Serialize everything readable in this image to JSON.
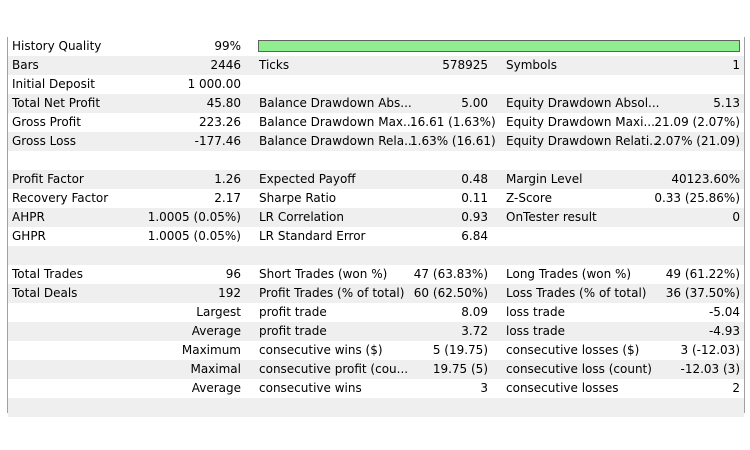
{
  "colors": {
    "quality_bar": "#90ee90",
    "row_alt": "#efefef"
  },
  "history": {
    "label": "History Quality",
    "value": "99%",
    "fill": 0.99
  },
  "rows": [
    {
      "label": "Bars",
      "value": "2446",
      "l2": "Ticks",
      "v2": "578925",
      "l3": "Symbols",
      "v3": "1"
    },
    {
      "label": "Initial Deposit",
      "value": "1 000.00",
      "l2": "",
      "v2": "",
      "l3": "",
      "v3": ""
    },
    {
      "label": "Total Net Profit",
      "value": "45.80",
      "l2": "Balance Drawdown Abs...",
      "v2": "5.00",
      "l3": "Equity Drawdown Absol...",
      "v3": "5.13"
    },
    {
      "label": "Gross Profit",
      "value": "223.26",
      "l2": "Balance Drawdown Max...",
      "v2": "16.61 (1.63%)",
      "l3": "Equity Drawdown Maxi...",
      "v3": "21.09 (2.07%)"
    },
    {
      "label": "Gross Loss",
      "value": "-177.46",
      "l2": "Balance Drawdown Rela...",
      "v2": "1.63% (16.61)",
      "l3": "Equity Drawdown Relati...",
      "v3": "2.07% (21.09)"
    },
    {
      "label": "",
      "value": "",
      "l2": "",
      "v2": "",
      "l3": "",
      "v3": ""
    },
    {
      "label": "Profit Factor",
      "value": "1.26",
      "l2": "Expected Payoff",
      "v2": "0.48",
      "l3": "Margin Level",
      "v3": "40123.60%"
    },
    {
      "label": "Recovery Factor",
      "value": "2.17",
      "l2": "Sharpe Ratio",
      "v2": "0.11",
      "l3": "Z-Score",
      "v3": "0.33 (25.86%)"
    },
    {
      "label": "AHPR",
      "value": "1.0005 (0.05%)",
      "l2": "LR Correlation",
      "v2": "0.93",
      "l3": "OnTester result",
      "v3": "0"
    },
    {
      "label": "GHPR",
      "value": "1.0005 (0.05%)",
      "l2": "LR Standard Error",
      "v2": "6.84",
      "l3": "",
      "v3": ""
    },
    {
      "label": "",
      "value": "",
      "l2": "",
      "v2": "",
      "l3": "",
      "v3": ""
    },
    {
      "label": "Total Trades",
      "value": "96",
      "l2": "Short Trades (won %)",
      "v2": "47 (63.83%)",
      "l3": "Long Trades (won %)",
      "v3": "49 (61.22%)"
    },
    {
      "label": "Total Deals",
      "value": "192",
      "l2": "Profit Trades (% of total)",
      "v2": "60 (62.50%)",
      "l3": "Loss Trades (% of total)",
      "v3": "36 (37.50%)"
    },
    {
      "label": "Largest",
      "value": "",
      "l2": "profit trade",
      "v2": "8.09",
      "l3": "loss trade",
      "v3": "-5.04",
      "right_label": true
    },
    {
      "label": "Average",
      "value": "",
      "l2": "profit trade",
      "v2": "3.72",
      "l3": "loss trade",
      "v3": "-4.93",
      "right_label": true
    },
    {
      "label": "Maximum",
      "value": "",
      "l2": "consecutive wins ($)",
      "v2": "5 (19.75)",
      "l3": "consecutive losses ($)",
      "v3": "3 (-12.03)",
      "right_label": true
    },
    {
      "label": "Maximal",
      "value": "",
      "l2": "consecutive profit (cou...",
      "v2": "19.75 (5)",
      "l3": "consecutive loss (count)",
      "v3": "-12.03 (3)",
      "right_label": true
    },
    {
      "label": "Average",
      "value": "",
      "l2": "consecutive wins",
      "v2": "3",
      "l3": "consecutive losses",
      "v3": "2",
      "right_label": true
    },
    {
      "label": "",
      "value": "",
      "l2": "",
      "v2": "",
      "l3": "",
      "v3": ""
    }
  ]
}
